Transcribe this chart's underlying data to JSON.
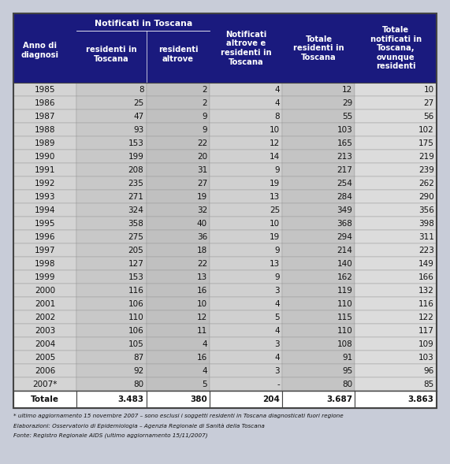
{
  "header_bg": "#1a1a7e",
  "header_text_color": "#ffffff",
  "rows": [
    [
      "1985",
      "8",
      "2",
      "4",
      "12",
      "10"
    ],
    [
      "1986",
      "25",
      "2",
      "4",
      "29",
      "27"
    ],
    [
      "1987",
      "47",
      "9",
      "8",
      "55",
      "56"
    ],
    [
      "1988",
      "93",
      "9",
      "10",
      "103",
      "102"
    ],
    [
      "1989",
      "153",
      "22",
      "12",
      "165",
      "175"
    ],
    [
      "1990",
      "199",
      "20",
      "14",
      "213",
      "219"
    ],
    [
      "1991",
      "208",
      "31",
      "9",
      "217",
      "239"
    ],
    [
      "1992",
      "235",
      "27",
      "19",
      "254",
      "262"
    ],
    [
      "1993",
      "271",
      "19",
      "13",
      "284",
      "290"
    ],
    [
      "1994",
      "324",
      "32",
      "25",
      "349",
      "356"
    ],
    [
      "1995",
      "358",
      "40",
      "10",
      "368",
      "398"
    ],
    [
      "1996",
      "275",
      "36",
      "19",
      "294",
      "311"
    ],
    [
      "1997",
      "205",
      "18",
      "9",
      "214",
      "223"
    ],
    [
      "1998",
      "127",
      "22",
      "13",
      "140",
      "149"
    ],
    [
      "1999",
      "153",
      "13",
      "9",
      "162",
      "166"
    ],
    [
      "2000",
      "116",
      "16",
      "3",
      "119",
      "132"
    ],
    [
      "2001",
      "106",
      "10",
      "4",
      "110",
      "116"
    ],
    [
      "2002",
      "110",
      "12",
      "5",
      "115",
      "122"
    ],
    [
      "2003",
      "106",
      "11",
      "4",
      "110",
      "117"
    ],
    [
      "2004",
      "105",
      "4",
      "3",
      "108",
      "109"
    ],
    [
      "2005",
      "87",
      "16",
      "4",
      "91",
      "103"
    ],
    [
      "2006",
      "92",
      "4",
      "3",
      "95",
      "96"
    ],
    [
      "2007*",
      "80",
      "5",
      "-",
      "80",
      "85"
    ]
  ],
  "total_row": [
    "Totale",
    "3.483",
    "380",
    "204",
    "3.687",
    "3.863"
  ],
  "col_widths_rel": [
    1.05,
    1.15,
    1.05,
    1.2,
    1.2,
    1.35
  ],
  "col_bg_colors": [
    "#d4d4d4",
    "#c8c8c8",
    "#c0c0c0",
    "#d0d0d0",
    "#c4c4c4",
    "#dcdcdc"
  ],
  "footnote_line1": "* ultimo aggiornamento 15 novembre 2007 – sono esclusi i soggetti residenti in Toscana diagnosticati fuori regione",
  "footnote_line2": "Elaborazioni: Osservatorio di Epidemiologia – Agenzia Regionale di Sanità della Toscana",
  "footnote_line3": "Fonte: Registro Regionale AIDS (ultimo aggiornamento 15/11/2007)",
  "outer_bg": "#c8ccd8",
  "border_color": "#444444",
  "grid_color": "#999999"
}
